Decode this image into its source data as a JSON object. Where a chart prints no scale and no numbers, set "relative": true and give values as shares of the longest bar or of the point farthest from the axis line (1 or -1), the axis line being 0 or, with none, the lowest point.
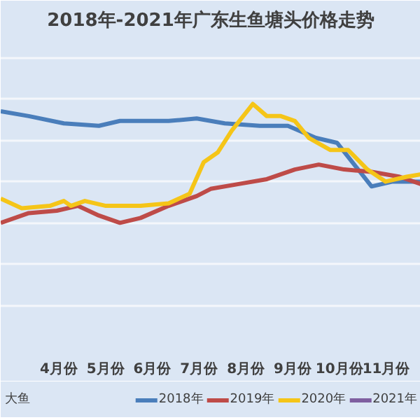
{
  "chart_data": {
    "type": "line",
    "title": "2018年-2021年广东生鱼塘头价格走势",
    "relative": true,
    "grid": "y",
    "legend": "bottom",
    "annotations": [
      "大鱼"
    ],
    "xlim": [
      2.76,
      11.74
    ],
    "xticks": [
      {
        "value": 4,
        "label": "4月份"
      },
      {
        "value": 5,
        "label": "5月份"
      },
      {
        "value": 6,
        "label": "6月份"
      },
      {
        "value": 7,
        "label": "7月份"
      },
      {
        "value": 8,
        "label": "8月份"
      },
      {
        "value": 9,
        "label": "9月份"
      },
      {
        "value": 10,
        "label": "10月份"
      },
      {
        "value": 11,
        "label": "11月份"
      }
    ],
    "series": [
      {
        "name": "2018年",
        "color": "#4a7ebb",
        "x": [
          2.76,
          3.36,
          4.11,
          4.86,
          5.31,
          6.35,
          6.95,
          7.55,
          8.3,
          8.9,
          9.5,
          9.95,
          10.69,
          11.14,
          11.74
        ],
        "values": [
          0.97,
          0.95,
          0.92,
          0.91,
          0.93,
          0.93,
          0.94,
          0.92,
          0.91,
          0.91,
          0.86,
          0.84,
          0.66,
          0.68,
          0.68
        ]
      },
      {
        "name": "2019年",
        "color": "#be4b48",
        "x": [
          2.76,
          3.36,
          3.96,
          4.41,
          4.86,
          5.31,
          5.75,
          6.35,
          6.95,
          7.25,
          7.85,
          8.45,
          9.05,
          9.56,
          10.1,
          10.69,
          11.29,
          11.74
        ],
        "values": [
          0.51,
          0.55,
          0.56,
          0.58,
          0.54,
          0.51,
          0.53,
          0.58,
          0.62,
          0.65,
          0.67,
          0.69,
          0.73,
          0.75,
          0.73,
          0.72,
          0.7,
          0.67
        ]
      },
      {
        "name": "2020年",
        "color": "#f5c518",
        "x": [
          2.76,
          3.21,
          3.81,
          4.11,
          4.26,
          4.56,
          5.01,
          5.75,
          6.35,
          6.8,
          7.1,
          7.4,
          7.7,
          8.15,
          8.45,
          8.75,
          9.05,
          9.35,
          9.81,
          10.19,
          10.6,
          10.99,
          11.44,
          11.74
        ],
        "values": [
          0.61,
          0.57,
          0.58,
          0.6,
          0.58,
          0.6,
          0.58,
          0.58,
          0.59,
          0.63,
          0.76,
          0.8,
          0.89,
          1.0,
          0.95,
          0.95,
          0.93,
          0.86,
          0.81,
          0.81,
          0.73,
          0.68,
          0.7,
          0.71
        ]
      },
      {
        "name": "2021年",
        "color": "#7f5fa0"
      }
    ]
  }
}
